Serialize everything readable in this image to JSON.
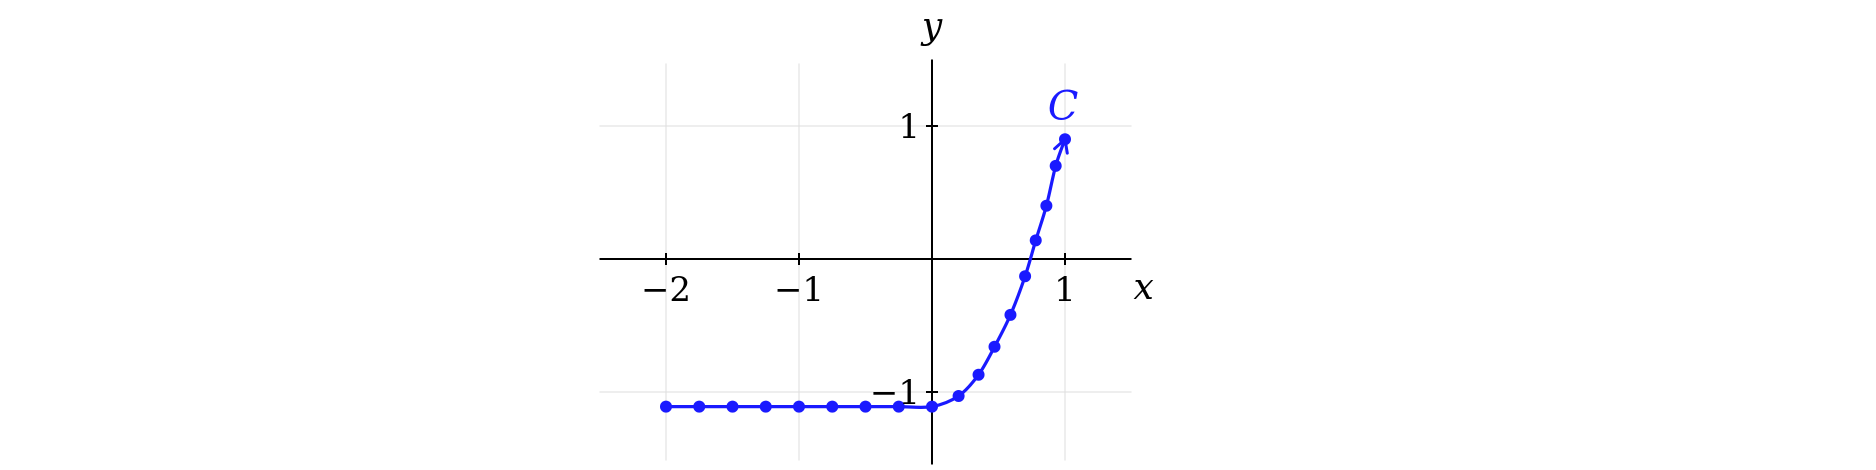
{
  "chart_data": {
    "type": "line",
    "title": "",
    "xlabel": "x",
    "ylabel": "y",
    "xlim": [
      -2.5,
      1.5
    ],
    "ylim": [
      -1.5,
      1.5
    ],
    "x_ticks": [
      -2,
      -1,
      1
    ],
    "x_tick_labels": [
      "−2",
      "−1",
      "1"
    ],
    "y_ticks": [
      -1,
      1
    ],
    "y_tick_labels": [
      "−1",
      "1"
    ],
    "grid": true,
    "series": [
      {
        "name": "C",
        "color": "#1a1aff",
        "marker": "circle",
        "end_arrow": true,
        "x": [
          -2,
          -1.75,
          -1.5,
          -1.25,
          -1,
          -0.75,
          -0.5,
          -0.25,
          0,
          0.2,
          0.35,
          0.47,
          0.59,
          0.7,
          0.78,
          0.86,
          0.93,
          1.0
        ],
        "y": [
          -1.11,
          -1.11,
          -1.11,
          -1.11,
          -1.11,
          -1.11,
          -1.11,
          -1.11,
          -1.11,
          -1.03,
          -0.87,
          -0.66,
          -0.42,
          -0.13,
          0.14,
          0.4,
          0.7,
          0.9
        ]
      }
    ]
  }
}
